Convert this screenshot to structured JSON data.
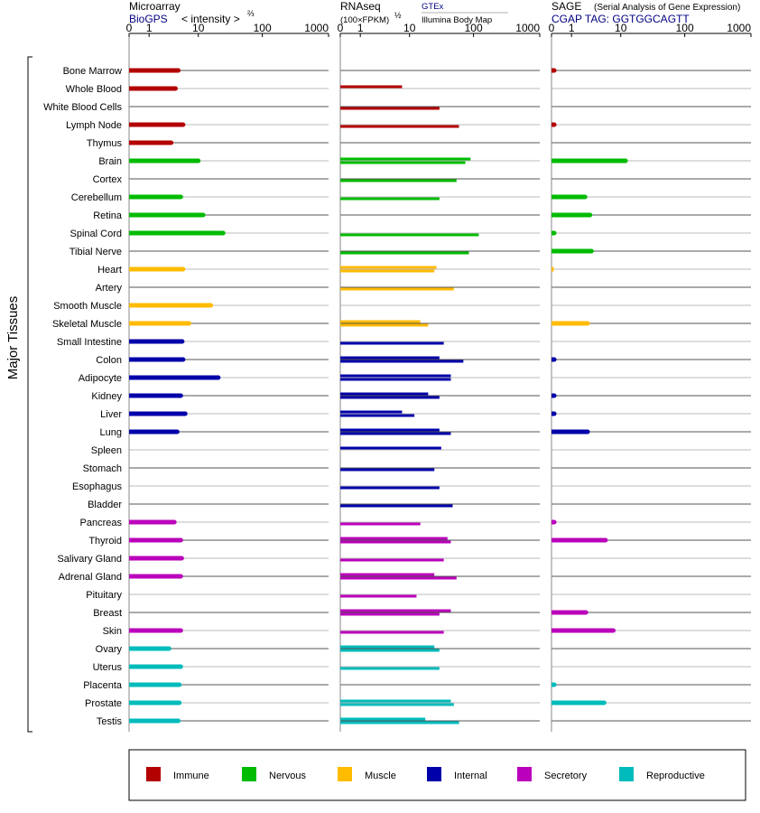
{
  "colors": {
    "Immune": "#b30000",
    "Nervous": "#00bb00",
    "Muscle": "#ffbb00",
    "Internal": "#0000aa",
    "Secretory": "#bb00bb",
    "Reproductive": "#00bbbb",
    "header_blue": "#000080",
    "grid_dark": "#555555",
    "grid_light": "#bbbbbb"
  },
  "y_axis_title": "Major Tissues",
  "panels": {
    "microarray": {
      "title": "Microarray",
      "source": "BioGPS",
      "unit_label": "< intensity >",
      "unit_sup": "⅔"
    },
    "rnaseq": {
      "title": "RNAseq",
      "source": "GTEx",
      "source2": "Illumina Body Map",
      "unit_label": "(100×FPKM)",
      "unit_sup": "½"
    },
    "sage": {
      "title": "SAGE",
      "subtitle": "(Serial Analysis of Gene Expression)",
      "source": "CGAP TAG: GGTGGCAGTT"
    }
  },
  "axis_ticks": [
    "0",
    "1",
    "10",
    "100",
    "1000"
  ],
  "legend": [
    {
      "label": "Immune",
      "color": "#b30000"
    },
    {
      "label": "Nervous",
      "color": "#00bb00"
    },
    {
      "label": "Muscle",
      "color": "#ffbb00"
    },
    {
      "label": "Internal",
      "color": "#0000aa"
    },
    {
      "label": "Secretory",
      "color": "#bb00bb"
    },
    {
      "label": "Reproductive",
      "color": "#00bbbb"
    }
  ],
  "chart_data": {
    "type": "bar",
    "orientation": "horizontal",
    "x_scale": "log(1+x)",
    "xlim": [
      0,
      1000
    ],
    "categories": [
      "Bone Marrow",
      "Whole Blood",
      "White Blood Cells",
      "Lymph Node",
      "Thymus",
      "Brain",
      "Cortex",
      "Cerebellum",
      "Retina",
      "Spinal Cord",
      "Tibial Nerve",
      "Heart",
      "Artery",
      "Smooth Muscle",
      "Skeletal Muscle",
      "Small Intestine",
      "Colon",
      "Adipocyte",
      "Kidney",
      "Liver",
      "Lung",
      "Spleen",
      "Stomach",
      "Esophagus",
      "Bladder",
      "Pancreas",
      "Thyroid",
      "Salivary Gland",
      "Adrenal Gland",
      "Pituitary",
      "Breast",
      "Skin",
      "Ovary",
      "Uterus",
      "Placenta",
      "Prostate",
      "Testis"
    ],
    "groups": [
      "Immune",
      "Immune",
      "Immune",
      "Immune",
      "Immune",
      "Nervous",
      "Nervous",
      "Nervous",
      "Nervous",
      "Nervous",
      "Nervous",
      "Muscle",
      "Muscle",
      "Muscle",
      "Muscle",
      "Internal",
      "Internal",
      "Internal",
      "Internal",
      "Internal",
      "Internal",
      "Internal",
      "Internal",
      "Internal",
      "Internal",
      "Secretory",
      "Secretory",
      "Secretory",
      "Secretory",
      "Secretory",
      "Secretory",
      "Secretory",
      "Reproductive",
      "Reproductive",
      "Reproductive",
      "Reproductive",
      "Reproductive"
    ],
    "series": [
      {
        "name": "Microarray",
        "values": [
          4.5,
          4.0,
          null,
          5.5,
          3.3,
          10.0,
          null,
          5.0,
          12.0,
          25.0,
          null,
          5.5,
          null,
          16.0,
          7.0,
          5.3,
          5.5,
          21.0,
          5.0,
          6.0,
          4.3,
          null,
          null,
          null,
          null,
          3.8,
          5.0,
          5.2,
          5.0,
          null,
          null,
          5.0,
          3.0,
          5.0,
          4.7,
          4.7,
          4.5
        ]
      },
      {
        "name": "RNAseq GTEx",
        "values": [
          null,
          7.5,
          null,
          null,
          null,
          90,
          null,
          null,
          null,
          null,
          null,
          null,
          null,
          null,
          null,
          null,
          null,
          null,
          null,
          null,
          null,
          32,
          null,
          null,
          null,
          null,
          null,
          null,
          null,
          null,
          null,
          null,
          null,
          null,
          null,
          null,
          null
        ]
      },
      {
        "name": "RNAseq GTEx rows",
        "values": [
          null,
          null,
          30,
          60,
          null,
          85,
          55,
          30,
          null,
          120,
          85,
          27,
          50,
          null,
          15,
          35,
          30,
          45,
          20,
          7.5,
          30,
          null,
          25,
          30,
          48,
          15,
          40,
          35,
          25,
          13,
          45,
          35,
          25,
          30,
          null,
          45,
          18
        ]
      },
      {
        "name": "RNAseq Illumina Body Map",
        "values": [
          null,
          null,
          null,
          null,
          null,
          75,
          null,
          null,
          null,
          null,
          null,
          25,
          null,
          null,
          20,
          null,
          70,
          45,
          30,
          12,
          45,
          null,
          null,
          null,
          null,
          null,
          45,
          null,
          55,
          null,
          30,
          null,
          30,
          null,
          null,
          50,
          60
        ]
      },
      {
        "name": "SAGE",
        "values": [
          0.1,
          null,
          null,
          0.1,
          null,
          12.0,
          null,
          2.2,
          2.8,
          0.1,
          3.0,
          0.08,
          null,
          null,
          2.5,
          null,
          0.1,
          null,
          0.1,
          0.1,
          2.5,
          null,
          null,
          null,
          null,
          0.1,
          5.5,
          null,
          null,
          null,
          2.3,
          7.5,
          null,
          null,
          0.1,
          5.2,
          null
        ]
      }
    ]
  }
}
